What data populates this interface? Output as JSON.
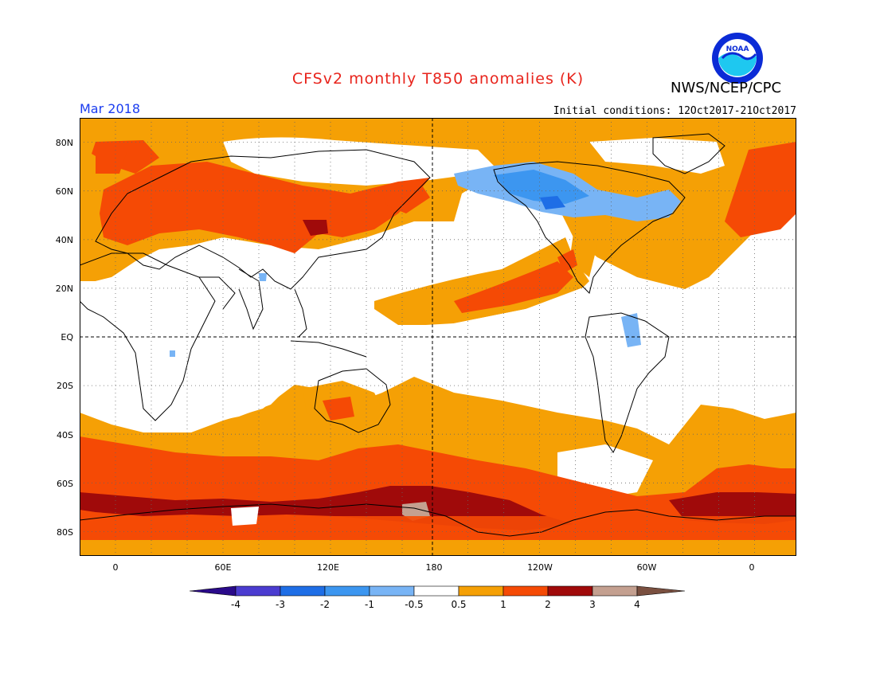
{
  "header": {
    "title": "CFSv2 monthly T850 anomalies (K)",
    "org": "NWS/NCEP/CPC",
    "logo_text": "NOAA",
    "month": "Mar 2018",
    "initial_conditions": "Initial conditions: 12Oct2017-21Oct2017"
  },
  "colors": {
    "title": "#e8241c",
    "month": "#1a3cf0",
    "ocean_bg": "#ffffff",
    "levels": {
      "lt_-4": "#2a0a8a",
      "-4_-3": "#4b3cd0",
      "-3_-2": "#1e6ee6",
      "-2_-1": "#3c96f0",
      "-1_-0.5": "#78b4f5",
      "-0.5_0.5": "#ffffff",
      "0.5_1": "#f5a005",
      "1_2": "#f54a05",
      "2_3": "#a00a0a",
      "3_4": "#c4a090",
      "gt_4": "#7a5040"
    }
  },
  "map": {
    "projection": "cylindrical equidistant",
    "lon_range": [
      -20,
      380
    ],
    "lat_range": [
      -90,
      90
    ],
    "y_ticks": [
      "80N",
      "60N",
      "40N",
      "20N",
      "EQ",
      "20S",
      "40S",
      "60S",
      "80S"
    ],
    "x_ticks": [
      "0",
      "60E",
      "120E",
      "180",
      "120W",
      "60W",
      "0"
    ],
    "grid": "dotted every 20 degrees",
    "reference_lines": [
      "Equator (dashed)",
      "180 meridian (dashed)"
    ]
  },
  "colorbar": {
    "labels": [
      "-4",
      "-3",
      "-2",
      "-1",
      "-0.5",
      "0.5",
      "1",
      "2",
      "3",
      "4"
    ],
    "units": "K"
  }
}
